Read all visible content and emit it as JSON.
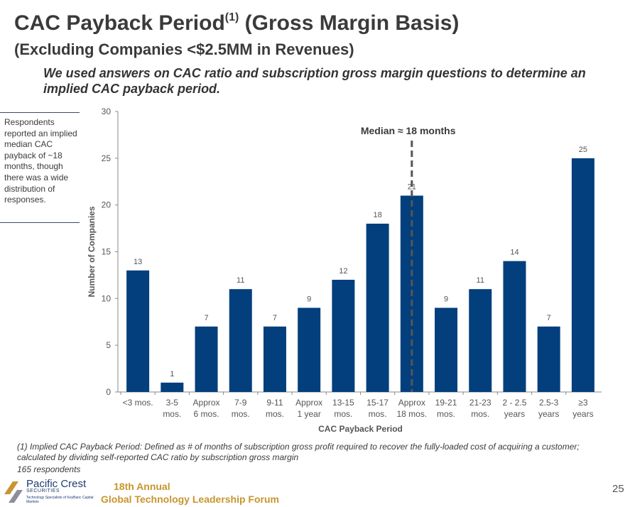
{
  "title": {
    "main": "CAC Payback Period",
    "sup": "(1)",
    "rest": " (Gross Margin Basis)",
    "subtitle": "(Excluding Companies <$2.5MM in Revenues)"
  },
  "intro": "We used answers on CAC ratio and subscription gross margin questions to determine an implied CAC payback period.",
  "callout": "Respondents reported an implied median CAC payback of ~18 months, though there was a wide distribution of responses.",
  "footnote": "(1) Implied CAC Payback Period: Defined as # of months of subscription gross profit required to recover the fully-loaded cost of acquiring a customer; calculated by dividing self-reported CAC ratio by subscription gross margin",
  "respondents": "165 respondents",
  "footer": {
    "logo_name": "Pacific Crest",
    "logo_securities": "SECURITIES",
    "logo_tagline": "Technology Specialists of KeyBanc Capital Markets",
    "forum_annual": "18th Annual",
    "forum_name": "Global Technology Leadership Forum",
    "page_number": "25"
  },
  "colors": {
    "bar": "#033F7C",
    "text": "#3a3a3a",
    "accent": "#c8952e",
    "logo": "#1f3b73"
  },
  "chart_data": {
    "type": "bar",
    "title": "",
    "xlabel": "CAC Payback Period",
    "ylabel": "Number of Companies",
    "ylim": [
      0,
      30
    ],
    "yticks": [
      0,
      5,
      10,
      15,
      20,
      25,
      30
    ],
    "categories": [
      [
        "<3 mos."
      ],
      [
        "3-5",
        "mos."
      ],
      [
        "Approx",
        "6 mos."
      ],
      [
        "7-9",
        "mos."
      ],
      [
        "9-11",
        "mos."
      ],
      [
        "Approx",
        "1 year"
      ],
      [
        "13-15",
        "mos."
      ],
      [
        "15-17",
        "mos."
      ],
      [
        "Approx",
        "18 mos."
      ],
      [
        "19-21",
        "mos."
      ],
      [
        "21-23",
        "mos."
      ],
      [
        "2 - 2.5",
        "years"
      ],
      [
        "2.5-3",
        "years"
      ],
      [
        "≥3",
        "years"
      ]
    ],
    "values": [
      13,
      1,
      7,
      11,
      7,
      9,
      12,
      18,
      21,
      9,
      11,
      14,
      7,
      25
    ],
    "annotation": {
      "label": "Median ≈ 18 months",
      "category_index": 8
    },
    "grid": false,
    "legend": "none"
  }
}
